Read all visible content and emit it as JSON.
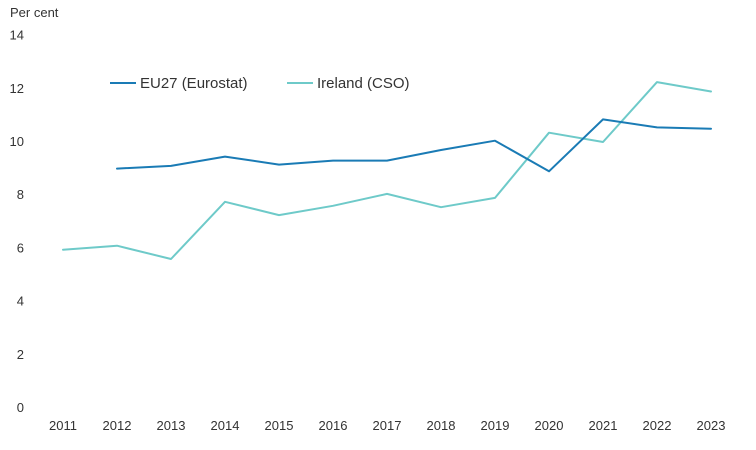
{
  "chart_data": {
    "type": "line",
    "title": "",
    "ylabel": "Per cent",
    "xlabel": "",
    "ylim": [
      0,
      14
    ],
    "yticks": [
      "0",
      "2",
      "4",
      "6",
      "8",
      "10",
      "12",
      "14"
    ],
    "categories": [
      "2011",
      "2012",
      "2013",
      "2014",
      "2015",
      "2016",
      "2017",
      "2018",
      "2019",
      "2020",
      "2021",
      "2022",
      "2023"
    ],
    "grid": false,
    "legend_position": "top-left",
    "series": [
      {
        "name": "EU27 (Eurostat)",
        "color": "#1a7bb5",
        "values": [
          null,
          9.0,
          9.1,
          9.45,
          9.15,
          9.3,
          9.3,
          9.7,
          10.05,
          8.9,
          10.85,
          10.55,
          10.5
        ]
      },
      {
        "name": "Ireland (CSO)",
        "color": "#6ecac9",
        "values": [
          5.95,
          6.1,
          5.6,
          7.75,
          7.25,
          7.6,
          8.05,
          7.55,
          7.9,
          10.35,
          10.0,
          12.25,
          11.9
        ]
      }
    ]
  }
}
